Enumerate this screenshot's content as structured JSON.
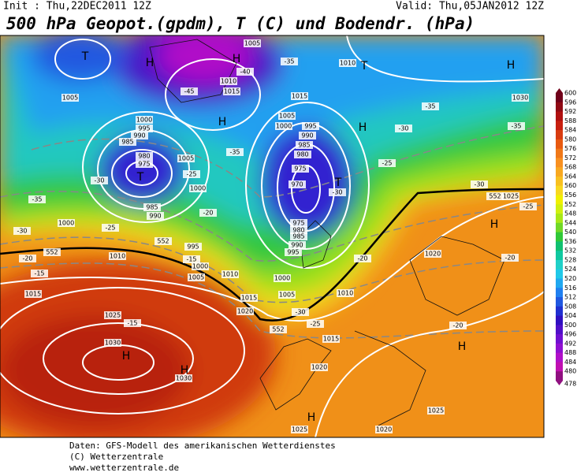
{
  "header": {
    "init": "Init : Thu,22DEC2011 12Z",
    "valid": "Valid: Thu,05JAN2012 12Z",
    "title": "500 hPa Geopot.(gpdm), T (C) und Bodendr. (hPa)"
  },
  "map": {
    "labels": [
      "H",
      "H",
      "H",
      "H",
      "H",
      "H",
      "H",
      "H",
      "H",
      "H",
      "T",
      "T",
      "T",
      "T",
      "1005",
      "1010",
      "1015",
      "1005",
      "1000",
      "995",
      "990",
      "985",
      "980",
      "975",
      "1005",
      "1000",
      "985",
      "990",
      "1000",
      "995",
      "1000",
      "1005",
      "1010",
      "1010",
      "1015",
      "1015",
      "1020",
      "1025",
      "1030",
      "1030",
      "1005",
      "1000",
      "995",
      "990",
      "985",
      "980",
      "975",
      "970",
      "975",
      "980",
      "985",
      "990",
      "995",
      "1000",
      "1005",
      "1010",
      "1015",
      "1020",
      "1025",
      "1020",
      "1025",
      "1020",
      "1030",
      "1025",
      "1010",
      "1015",
      "-35",
      "-40",
      "-45",
      "-35",
      "-30",
      "-35",
      "-30",
      "-25",
      "-20",
      "-25",
      "-20",
      "-15",
      "-15",
      "-15",
      "-20",
      "-25",
      "-30",
      "-30",
      "-25",
      "-30",
      "-35",
      "-35",
      "-30",
      "-25",
      "-20",
      "-20",
      "552",
      "552",
      "552",
      "552"
    ]
  },
  "colorbar": {
    "labels": [
      600,
      596,
      592,
      588,
      584,
      580,
      576,
      572,
      568,
      564,
      560,
      556,
      552,
      548,
      544,
      540,
      536,
      532,
      528,
      524,
      520,
      516,
      512,
      508,
      504,
      500,
      496,
      492,
      488,
      484,
      480,
      478
    ],
    "colors": [
      "#70001a",
      "#900a14",
      "#b01010",
      "#c82010",
      "#d83c10",
      "#e85a10",
      "#f07818",
      "#f89020",
      "#f8a820",
      "#f8c020",
      "#f8d820",
      "#f0f000",
      "#d0f010",
      "#a8e818",
      "#70d828",
      "#30c838",
      "#10c070",
      "#10c8a0",
      "#20d0c8",
      "#20c8e8",
      "#20a8f0",
      "#2080f0",
      "#2058e0",
      "#2030d0",
      "#3010c0",
      "#5010c8",
      "#7010d0",
      "#9010d0",
      "#b010c8",
      "#c010b0",
      "#901080"
    ]
  },
  "footer": {
    "lines": [
      "Daten: GFS-Modell des amerikanischen Wetterdienstes",
      "(C) Wetterzentrale",
      "www.wetterzentrale.de"
    ]
  }
}
